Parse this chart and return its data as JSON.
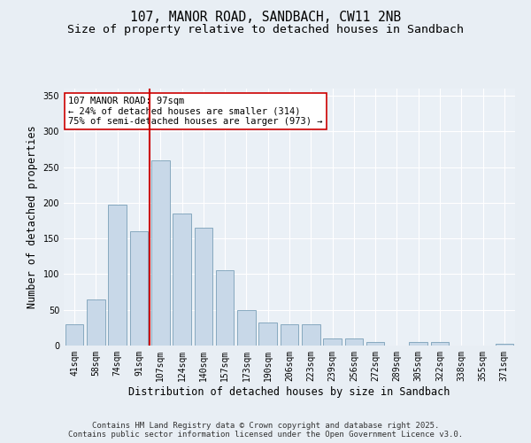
{
  "title": "107, MANOR ROAD, SANDBACH, CW11 2NB",
  "subtitle": "Size of property relative to detached houses in Sandbach",
  "xlabel": "Distribution of detached houses by size in Sandbach",
  "ylabel": "Number of detached properties",
  "categories": [
    "41sqm",
    "58sqm",
    "74sqm",
    "91sqm",
    "107sqm",
    "124sqm",
    "140sqm",
    "157sqm",
    "173sqm",
    "190sqm",
    "206sqm",
    "223sqm",
    "239sqm",
    "256sqm",
    "272sqm",
    "289sqm",
    "305sqm",
    "322sqm",
    "338sqm",
    "355sqm",
    "371sqm"
  ],
  "values": [
    30,
    65,
    197,
    160,
    260,
    185,
    165,
    105,
    50,
    32,
    30,
    30,
    10,
    10,
    5,
    0,
    5,
    5,
    0,
    0,
    2
  ],
  "bar_color": "#c8d8e8",
  "bar_edge_color": "#7aa0b8",
  "vline_x": 3.5,
  "vline_color": "#cc0000",
  "annotation_text": "107 MANOR ROAD: 97sqm\n← 24% of detached houses are smaller (314)\n75% of semi-detached houses are larger (973) →",
  "annotation_box_color": "#ffffff",
  "annotation_box_edge": "#cc0000",
  "ylim": [
    0,
    360
  ],
  "yticks": [
    0,
    50,
    100,
    150,
    200,
    250,
    300,
    350
  ],
  "bg_color": "#e8eef4",
  "plot_bg_color": "#eaf0f6",
  "footer_line1": "Contains HM Land Registry data © Crown copyright and database right 2025.",
  "footer_line2": "Contains public sector information licensed under the Open Government Licence v3.0.",
  "title_fontsize": 10.5,
  "subtitle_fontsize": 9.5,
  "axis_label_fontsize": 8.5,
  "tick_fontsize": 7,
  "annotation_fontsize": 7.5,
  "footer_fontsize": 6.5
}
